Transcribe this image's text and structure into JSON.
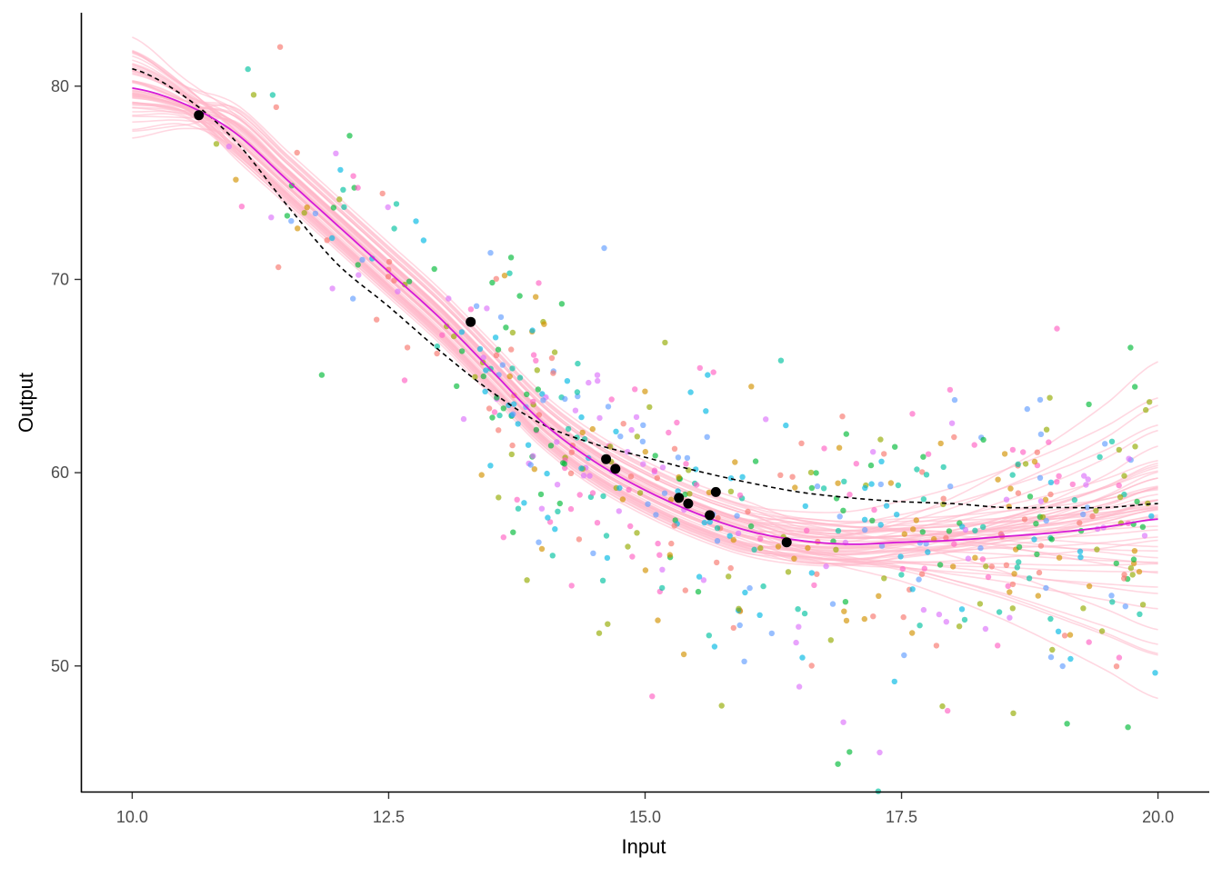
{
  "chart_data": {
    "type": "scatter",
    "title": "",
    "xlabel": "Input",
    "ylabel": "Output",
    "xlim": [
      9.5,
      20.5
    ],
    "ylim": [
      43.5,
      83.8
    ],
    "x_ticks": [
      10.0,
      12.5,
      15.0,
      17.5,
      20.0
    ],
    "x_tick_labels": [
      "10.0",
      "12.5",
      "15.0",
      "17.5",
      "20.0"
    ],
    "y_ticks": [
      50,
      60,
      70,
      80
    ],
    "y_tick_labels": [
      "50",
      "60",
      "70",
      "80"
    ],
    "grid": false,
    "legend": "none",
    "colors": {
      "mean_curve": "#d61ad6",
      "posterior_curves": "#ffb6c8",
      "true_curve": "#000000",
      "observed_points": "#000000",
      "cloud_palette": [
        "#f8766d",
        "#d39200",
        "#93aa00",
        "#00ba38",
        "#00c19f",
        "#00b9e3",
        "#619cff",
        "#db72fb",
        "#ff61c3"
      ]
    },
    "observed_points": [
      {
        "x": 10.65,
        "y": 78.5
      },
      {
        "x": 13.3,
        "y": 67.8
      },
      {
        "x": 14.62,
        "y": 60.7
      },
      {
        "x": 14.71,
        "y": 60.2
      },
      {
        "x": 15.33,
        "y": 58.7
      },
      {
        "x": 15.42,
        "y": 58.4
      },
      {
        "x": 15.63,
        "y": 57.8
      },
      {
        "x": 15.69,
        "y": 59.0
      },
      {
        "x": 16.38,
        "y": 56.4
      }
    ],
    "mean_curve": {
      "x": [
        10.0,
        10.5,
        11.0,
        11.5,
        12.0,
        12.5,
        13.0,
        13.5,
        14.0,
        14.5,
        15.0,
        15.5,
        16.0,
        16.5,
        17.0,
        17.5,
        18.0,
        18.5,
        19.0,
        19.5,
        20.0
      ],
      "y": [
        79.9,
        79.1,
        77.6,
        75.2,
        72.8,
        70.4,
        68.0,
        65.3,
        62.6,
        60.6,
        59.1,
        57.9,
        57.0,
        56.5,
        56.3,
        56.4,
        56.5,
        56.7,
        56.9,
        57.2,
        57.6
      ]
    },
    "true_curve": {
      "x": [
        10.0,
        10.5,
        11.0,
        11.5,
        12.0,
        12.5,
        13.0,
        13.5,
        14.0,
        14.5,
        15.0,
        15.5,
        16.0,
        16.5,
        17.0,
        17.5,
        18.0,
        18.5,
        19.0,
        19.5,
        20.0
      ],
      "y": [
        80.9,
        79.5,
        77.2,
        73.9,
        70.8,
        68.6,
        66.3,
        64.2,
        62.5,
        61.5,
        60.8,
        60.1,
        59.5,
        59.0,
        58.7,
        58.5,
        58.4,
        58.2,
        58.2,
        58.2,
        58.4
      ]
    }
  }
}
